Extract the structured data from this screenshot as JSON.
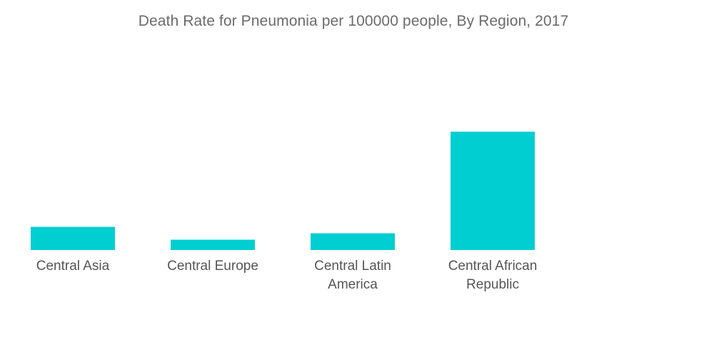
{
  "chart_data": {
    "type": "bar",
    "title": "Death Rate for Pneumonia per 100000 people, By Region, 2017",
    "xlabel": "",
    "ylabel": "",
    "categories": [
      [
        "Central Asia"
      ],
      [
        "Central Europe"
      ],
      [
        "Central Latin",
        "America"
      ],
      [
        "Central African",
        "Republic"
      ]
    ],
    "values": [
      18,
      8,
      13,
      92
    ],
    "ylim": [
      0,
      100
    ],
    "grid": false,
    "legend": "none",
    "colors": {
      "bar": "#00CED1"
    }
  }
}
